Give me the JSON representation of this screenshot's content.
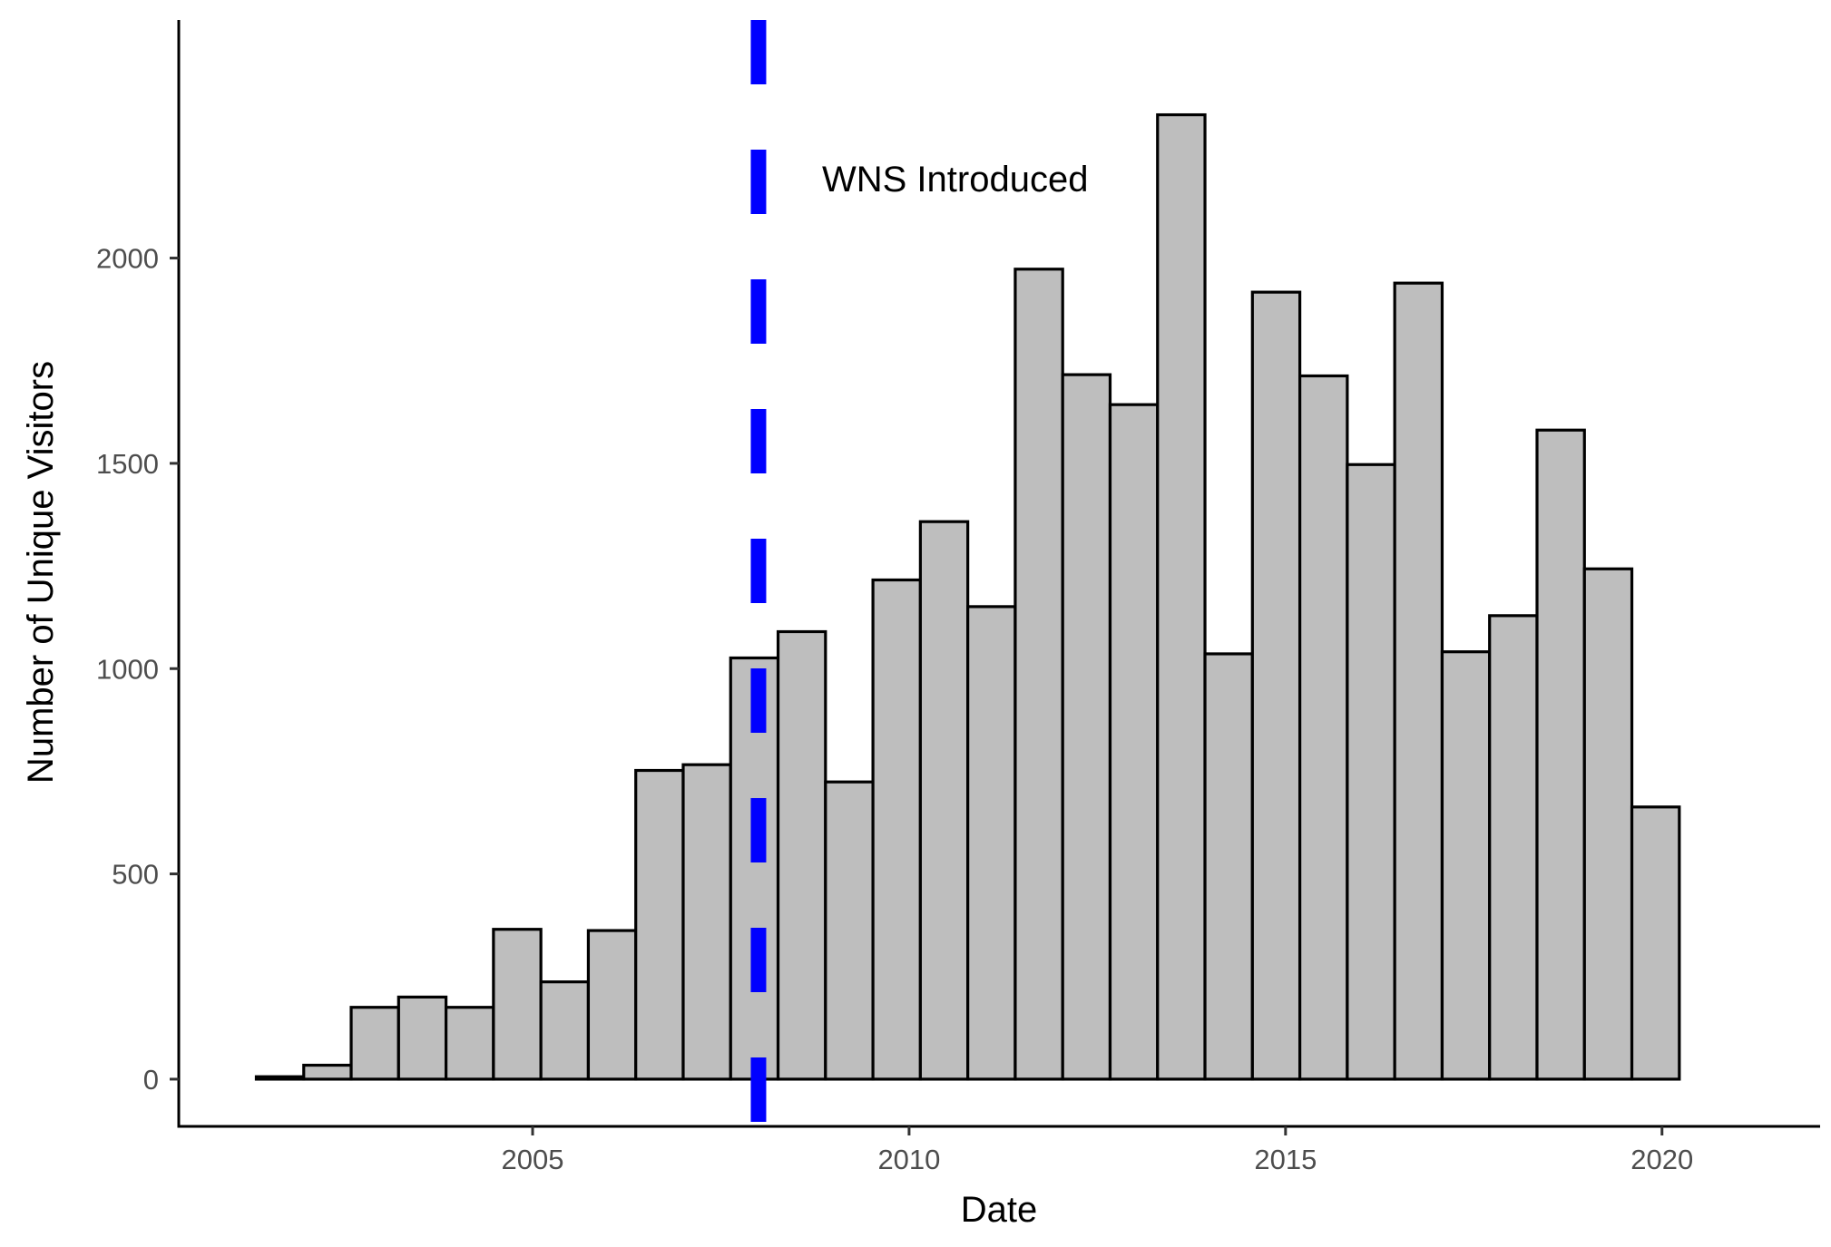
{
  "chart_data": {
    "type": "bar",
    "xlabel": "Date",
    "ylabel": "Number of Unique Visitors",
    "x_ticks": [
      "2005",
      "2010",
      "2015",
      "2020"
    ],
    "y_ticks": [
      "0",
      "500",
      "1000",
      "1500",
      "2000"
    ],
    "xlim": [
      2000.3,
      2022.1
    ],
    "ylim": [
      -115,
      2580
    ],
    "bar_fill": "#bebebe",
    "bar_stroke": "#000000",
    "bin_width": 0.63,
    "bins": [
      {
        "start": 2001.33,
        "value": 6
      },
      {
        "start": 2001.96,
        "value": 34
      },
      {
        "start": 2002.59,
        "value": 175
      },
      {
        "start": 2003.22,
        "value": 200
      },
      {
        "start": 2003.85,
        "value": 175
      },
      {
        "start": 2004.48,
        "value": 365
      },
      {
        "start": 2005.11,
        "value": 237
      },
      {
        "start": 2005.74,
        "value": 362
      },
      {
        "start": 2006.37,
        "value": 752
      },
      {
        "start": 2007.0,
        "value": 766
      },
      {
        "start": 2007.63,
        "value": 1026
      },
      {
        "start": 2008.26,
        "value": 1090
      },
      {
        "start": 2008.89,
        "value": 724
      },
      {
        "start": 2009.52,
        "value": 1216
      },
      {
        "start": 2010.15,
        "value": 1358
      },
      {
        "start": 2010.78,
        "value": 1151
      },
      {
        "start": 2011.41,
        "value": 1973
      },
      {
        "start": 2012.04,
        "value": 1716
      },
      {
        "start": 2012.67,
        "value": 1643
      },
      {
        "start": 2013.3,
        "value": 2349
      },
      {
        "start": 2013.93,
        "value": 1036
      },
      {
        "start": 2014.56,
        "value": 1917
      },
      {
        "start": 2015.19,
        "value": 1713
      },
      {
        "start": 2015.82,
        "value": 1497
      },
      {
        "start": 2016.45,
        "value": 1939
      },
      {
        "start": 2017.08,
        "value": 1041
      },
      {
        "start": 2017.71,
        "value": 1129
      },
      {
        "start": 2018.34,
        "value": 1581
      },
      {
        "start": 2018.97,
        "value": 1243
      },
      {
        "start": 2019.6,
        "value": 663
      }
    ],
    "vline": {
      "x": 2008.0,
      "label": "WNS Introduced",
      "color": "#0000ff",
      "style": "dashed"
    },
    "grid": false
  }
}
